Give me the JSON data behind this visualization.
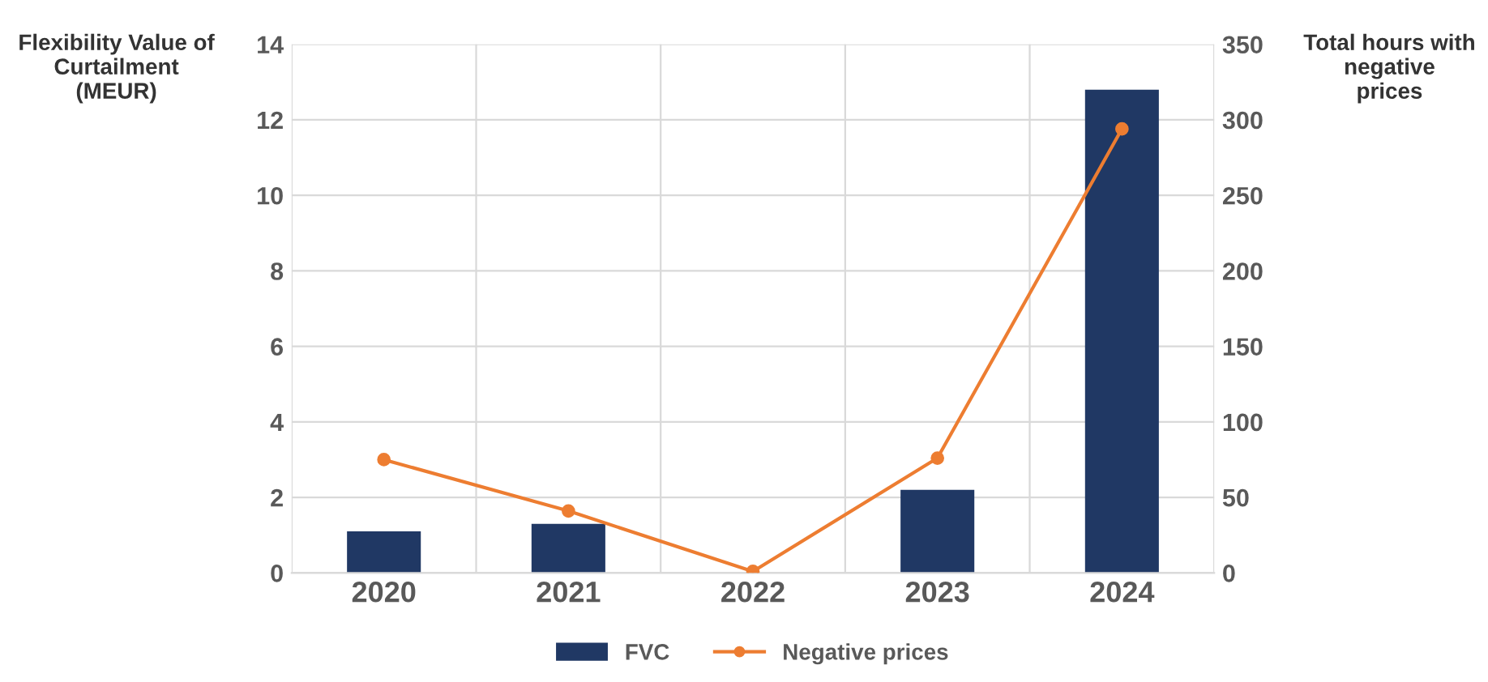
{
  "chart_data": {
    "type": "bar",
    "ylabel": "Flexibility Value of\nCurtailment\n(MEUR)",
    "y2label": "Total hours with\nnegative\nprices",
    "categories": [
      "2020",
      "2021",
      "2022",
      "2023",
      "2024"
    ],
    "series": [
      {
        "name": "FVC",
        "color": "#203864",
        "values": [
          1.1,
          1.3,
          0,
          2.2,
          12.8
        ]
      },
      {
        "name": "Negative prices",
        "type": "line",
        "axis": "y2",
        "color": "#ed7d31",
        "marker": "circle",
        "values": [
          75,
          41,
          1,
          76,
          294
        ]
      }
    ],
    "ylim": [
      0,
      14
    ],
    "yticks": [
      0,
      2,
      4,
      6,
      8,
      10,
      12,
      14
    ],
    "y2lim": [
      0,
      350
    ],
    "y2ticks": [
      0,
      50,
      100,
      150,
      200,
      250,
      300,
      350
    ],
    "grid": true,
    "legend": "bottom"
  }
}
